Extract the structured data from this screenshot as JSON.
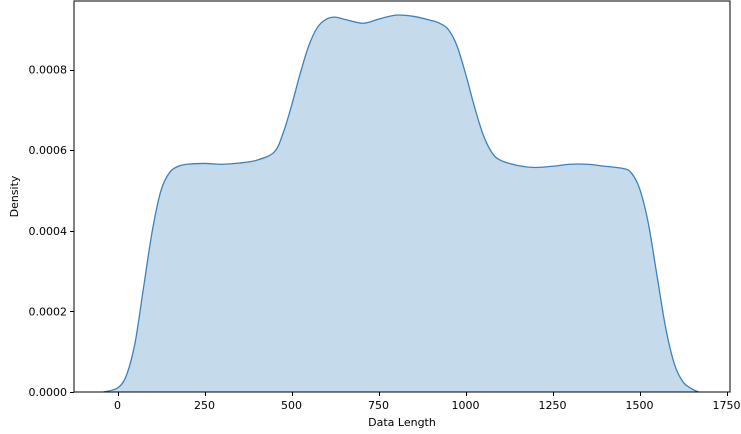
{
  "chart_data": {
    "type": "area",
    "xlabel": "Data Length",
    "ylabel": "Density",
    "xlim": [
      -125,
      1760
    ],
    "ylim": [
      0,
      0.00097
    ],
    "x_ticks": [
      0,
      250,
      500,
      750,
      1000,
      1250,
      1500,
      1750
    ],
    "y_ticks": [
      0.0,
      0.0002,
      0.0004,
      0.0006,
      0.0008
    ],
    "x_tick_labels": [
      "0",
      "250",
      "500",
      "750",
      "1000",
      "1250",
      "1500",
      "1750"
    ],
    "y_tick_labels": [
      "0.0000",
      "0.0002",
      "0.0004",
      "0.0006",
      "0.0008"
    ],
    "grid": false,
    "series": [
      {
        "line_color": "#3a82bd",
        "fill_color": "#c5dbec",
        "points": [
          [
            -40,
            0.0
          ],
          [
            0,
            1e-05
          ],
          [
            25,
            4e-05
          ],
          [
            50,
            0.00012
          ],
          [
            75,
            0.00026
          ],
          [
            100,
            0.0004
          ],
          [
            125,
            0.0005
          ],
          [
            150,
            0.000545
          ],
          [
            175,
            0.00056
          ],
          [
            200,
            0.000565
          ],
          [
            250,
            0.000567
          ],
          [
            300,
            0.000565
          ],
          [
            350,
            0.000568
          ],
          [
            400,
            0.000575
          ],
          [
            450,
            0.000595
          ],
          [
            475,
            0.00064
          ],
          [
            500,
            0.00071
          ],
          [
            525,
            0.00079
          ],
          [
            550,
            0.00086
          ],
          [
            575,
            0.000905
          ],
          [
            600,
            0.000925
          ],
          [
            625,
            0.00093
          ],
          [
            650,
            0.000925
          ],
          [
            700,
            0.000915
          ],
          [
            725,
            0.000918
          ],
          [
            750,
            0.000925
          ],
          [
            800,
            0.000935
          ],
          [
            850,
            0.000932
          ],
          [
            900,
            0.000922
          ],
          [
            925,
            0.000915
          ],
          [
            950,
            0.0009
          ],
          [
            975,
            0.00086
          ],
          [
            1000,
            0.00079
          ],
          [
            1025,
            0.00071
          ],
          [
            1050,
            0.00064
          ],
          [
            1075,
            0.000595
          ],
          [
            1100,
            0.000575
          ],
          [
            1150,
            0.000562
          ],
          [
            1200,
            0.000557
          ],
          [
            1250,
            0.00056
          ],
          [
            1300,
            0.000565
          ],
          [
            1350,
            0.000565
          ],
          [
            1400,
            0.00056
          ],
          [
            1450,
            0.000555
          ],
          [
            1475,
            0.000545
          ],
          [
            1500,
            0.000505
          ],
          [
            1525,
            0.00042
          ],
          [
            1550,
            0.00029
          ],
          [
            1575,
            0.00016
          ],
          [
            1600,
            7e-05
          ],
          [
            1625,
            2.5e-05
          ],
          [
            1650,
            8e-06
          ],
          [
            1670,
            0.0
          ]
        ]
      }
    ]
  }
}
